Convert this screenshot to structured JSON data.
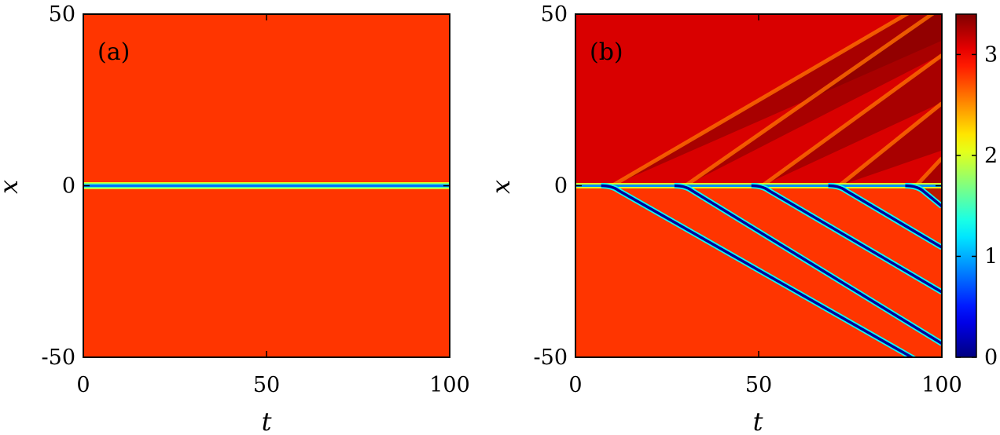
{
  "chart_data": [
    {
      "type": "heatmap",
      "panel_label": "(a)",
      "xlabel": "t",
      "ylabel": "x",
      "xlim": [
        0,
        100
      ],
      "ylim": [
        -50,
        50
      ],
      "x_ticks": [
        0,
        50,
        100
      ],
      "y_ticks": [
        -50,
        0,
        50
      ],
      "x_tick_labels": [
        "0",
        "50",
        "100"
      ],
      "y_tick_labels": [
        "-50",
        "0",
        "50"
      ],
      "background_value": 2.8,
      "features": [
        {
          "kind": "stationary dip",
          "x": 0,
          "t_range": [
            0,
            100
          ],
          "min_value": 0.8,
          "width_x": 1.5
        }
      ]
    },
    {
      "type": "heatmap",
      "panel_label": "(b)",
      "xlabel": "t",
      "ylabel": "x",
      "xlim": [
        0,
        100
      ],
      "ylim": [
        -50,
        50
      ],
      "x_ticks": [
        0,
        50,
        100
      ],
      "y_ticks": [
        -50,
        0,
        50
      ],
      "x_tick_labels": [
        "0",
        "50",
        "100"
      ],
      "y_tick_labels": [
        "-50",
        "0",
        "50"
      ],
      "colorbar": {
        "range": [
          0,
          3.4
        ],
        "ticks": [
          0,
          1,
          2,
          3
        ],
        "tick_labels": [
          "0",
          "1",
          "2",
          "3"
        ],
        "colormap": "jet"
      },
      "background_value_upper": 3.1,
      "background_value_lower": 2.8,
      "emitted_dark_solitons": [
        {
          "t_start": 10,
          "x_end_at_t100": -55,
          "min_value": 0.1
        },
        {
          "t_start": 30,
          "x_end_at_t100": -46,
          "min_value": 0.1
        },
        {
          "t_start": 51,
          "x_end_at_t100": -31,
          "min_value": 0.1
        },
        {
          "t_start": 72,
          "x_end_at_t100": -18,
          "min_value": 0.1
        },
        {
          "t_start": 93,
          "x_end_at_t100": -6,
          "min_value": 0.1
        }
      ],
      "emitted_bright_waves": [
        {
          "t_start": 10,
          "x_end_at_t100": 56,
          "peak_value": 3.3
        },
        {
          "t_start": 30,
          "x_end_at_t100": 52,
          "peak_value": 3.3
        },
        {
          "t_start": 51,
          "x_end_at_t100": 38,
          "peak_value": 3.3
        },
        {
          "t_start": 72,
          "x_end_at_t100": 24,
          "peak_value": 3.3
        },
        {
          "t_start": 93,
          "x_end_at_t100": 8,
          "peak_value": 3.3
        }
      ],
      "stationary_dip": {
        "x": 0,
        "min_value": 0.9
      }
    }
  ]
}
